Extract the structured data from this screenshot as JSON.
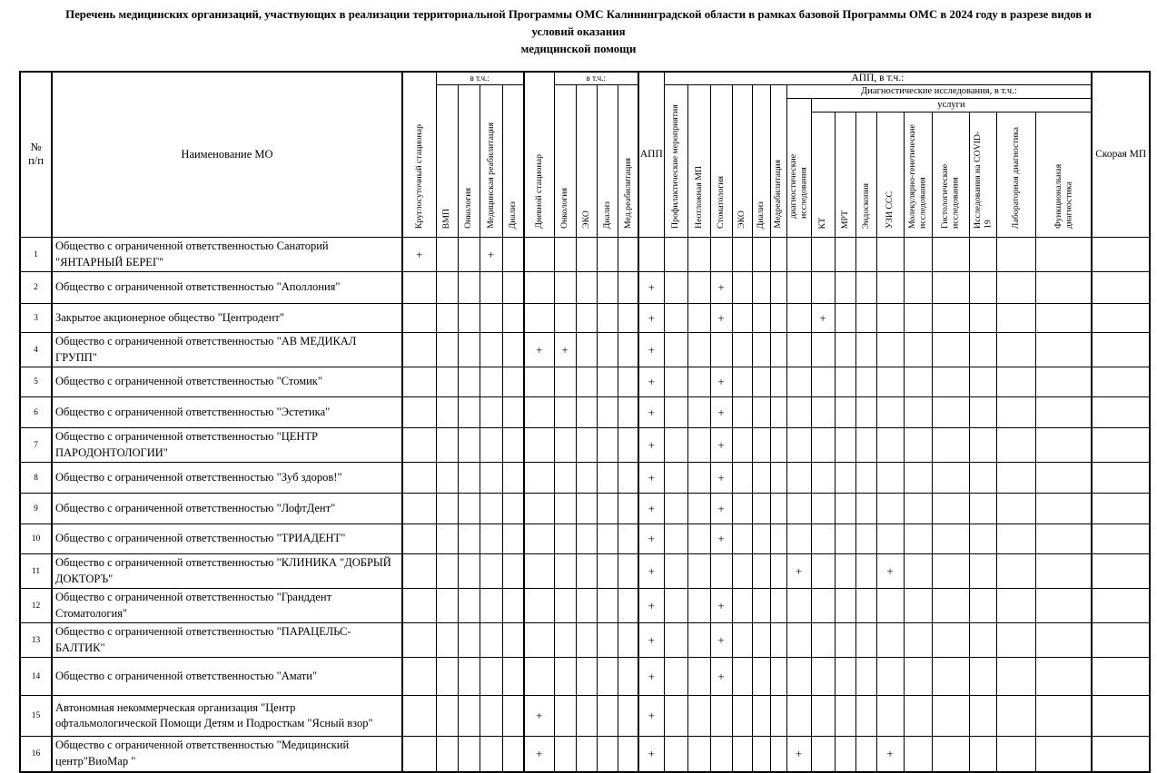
{
  "title": {
    "line1": "Перечень медицинских организаций, участвующих в реализации территориальной Программы ОМС Калининградской области в рамках базовой Программы ОМС в 2024 году в разрезе видов и условий оказания",
    "line2": "медицинской помощи"
  },
  "table": {
    "plus": "+",
    "header": {
      "num": "№\nп/п",
      "name": "Наименование МО",
      "ks": "Круглосуточный стационар",
      "vtch1": "в т.ч.:",
      "vmp": "ВМП",
      "onk1": "Онкология",
      "medreab1": "Медицинская реабилитация",
      "dializ1": "Диализ",
      "ds": "Дневной стационар",
      "vtch2": "в т.ч.:",
      "onk2": "Онкология",
      "eko2": "ЭКО",
      "dializ2": "Диализ",
      "medreab2": "Мед.реабилитация",
      "app": "АПП",
      "app_vtch": "АПП, в т.ч.:",
      "prof": "Профилактические мероприятия",
      "neotl": "Неотложная МП",
      "stomat": "Стоматология",
      "eko3": "ЭКО",
      "dializ3": "Диализ",
      "medreab3": "Медреабилитация",
      "diag_group": "Диагностические исследования, в т.ч.:",
      "diag": "диагностические исследования",
      "uslugi": "услуги",
      "kt": "КТ",
      "mrt": "МРТ",
      "endo": "Эндоскопия",
      "uzi": "УЗИ ССС",
      "molek": "Молекулярно-генетические исследования",
      "gistol": "Гистологические исследования",
      "covid": "Исследования на COVID-19",
      "lab": "Лабораторная диагностика",
      "funk": "Функциональная диагностика",
      "smp": "Скорая МП"
    },
    "mark_columns": [
      "ks",
      "vmp",
      "onk1",
      "medreab1",
      "dializ1",
      "ds",
      "onk2",
      "eko2",
      "dializ2",
      "medreab2",
      "app",
      "prof",
      "neotl",
      "stomat",
      "eko3",
      "dializ3",
      "medreab3",
      "diag",
      "kt",
      "mrt",
      "endo",
      "uzi",
      "molek",
      "gistol",
      "covid",
      "lab",
      "funk",
      "smp"
    ],
    "rows": [
      {
        "num": "1",
        "name": "Общество с ограниченной ответственностью Санаторий \"ЯНТАРНЫЙ БЕРЕГ\"",
        "marks": [
          "ks",
          "medreab1"
        ]
      },
      {
        "num": "2",
        "name": "Общество с ограниченной ответственностью \"Аполлония\"",
        "marks": [
          "app",
          "stomat"
        ]
      },
      {
        "num": "3",
        "name": "Закрытое акционерное общество \"Центродент\"",
        "marks": [
          "app",
          "stomat",
          "kt"
        ]
      },
      {
        "num": "4",
        "name": "Общество с ограниченной ответственностью \"АВ МЕДИКАЛ ГРУПП\"",
        "marks": [
          "ds",
          "onk2",
          "app"
        ]
      },
      {
        "num": "5",
        "name": "Общество с ограниченной ответственностью \"Стомик\"",
        "marks": [
          "app",
          "stomat"
        ]
      },
      {
        "num": "6",
        "name": "Общество с ограниченной ответственностью \"Эстетика\"",
        "marks": [
          "app",
          "stomat"
        ]
      },
      {
        "num": "7",
        "name": "Общество с ограниченной ответственностью \"ЦЕНТР ПАРОДОНТОЛОГИИ\"",
        "marks": [
          "app",
          "stomat"
        ]
      },
      {
        "num": "8",
        "name": "Общество с ограниченной ответственностью \"Зуб здоров!\"",
        "marks": [
          "app",
          "stomat"
        ]
      },
      {
        "num": "9",
        "name": "Общество с ограниченной ответственностью \"ЛофтДент\"",
        "marks": [
          "app",
          "stomat"
        ]
      },
      {
        "num": "10",
        "name": "Общество с ограниченной ответственностью \"ТРИАДЕНТ\"",
        "marks": [
          "app",
          "stomat"
        ]
      },
      {
        "num": "11",
        "name": "Общество с ограниченной ответственностью \"КЛИНИКА \"ДОБРЫЙ ДОКТОРЪ\"",
        "marks": [
          "app",
          "diag",
          "uzi"
        ]
      },
      {
        "num": "12",
        "name": "Общество с ограниченной ответственностью \"Гранддент Стоматология\"",
        "marks": [
          "app",
          "stomat"
        ]
      },
      {
        "num": "13",
        "name": "Общество с ограниченной ответственностью \"ПАРАЦЕЛЬС-БАЛТИК\"",
        "marks": [
          "app",
          "stomat"
        ]
      },
      {
        "num": "14",
        "name": "Общество с ограниченной ответственностью \"Амати\"",
        "marks": [
          "app",
          "stomat"
        ]
      },
      {
        "num": "15",
        "name": "Автономная некоммерческая организация \"Центр офтальмологической Помощи Детям и Подросткам \"Ясный взор\"",
        "marks": [
          "ds",
          "app"
        ]
      },
      {
        "num": "16",
        "name": "Общество с ограниченной ответственностью \"Медицинский центр\"ВиоМар \"",
        "marks": [
          "ds",
          "app",
          "diag",
          "uzi"
        ]
      }
    ]
  }
}
